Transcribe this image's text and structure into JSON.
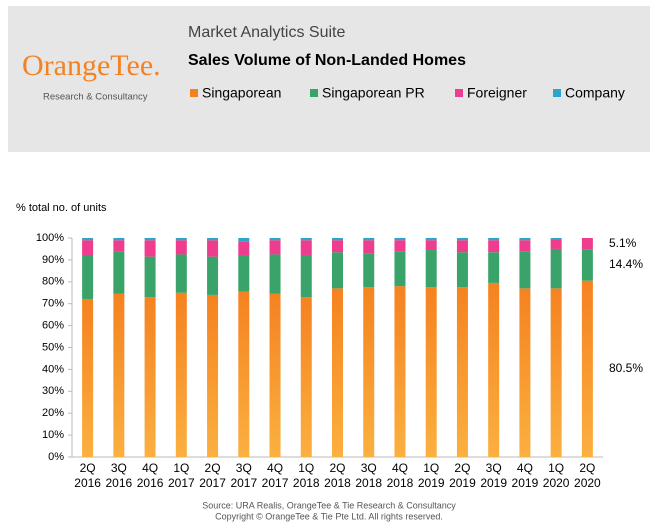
{
  "chart_data": {
    "type": "stacked_bar",
    "brand": "OrangeTee.",
    "brand_subtitle": "Research & Consultancy",
    "suite": "Market Analytics Suite",
    "title": "Sales Volume of Non-Landed Homes",
    "y_axis_label": "% total no. of units",
    "categories": [
      "2Q 2016",
      "3Q 2016",
      "4Q 2016",
      "1Q 2017",
      "2Q 2017",
      "3Q 2017",
      "4Q 2017",
      "1Q 2018",
      "2Q 2018",
      "3Q 2018",
      "4Q 2018",
      "1Q 2019",
      "2Q 2019",
      "3Q 2019",
      "4Q 2019",
      "1Q 2020",
      "2Q 2020"
    ],
    "series": [
      {
        "name": "Singaporean",
        "color": "#f58220",
        "values": [
          72,
          74.5,
          73,
          75,
          74,
          75.5,
          74.5,
          73,
          77,
          77.5,
          78,
          77.5,
          77.5,
          79.5,
          77,
          77,
          80.5
        ],
        "value_labels": [
          null,
          null,
          null,
          null,
          null,
          null,
          null,
          null,
          null,
          null,
          null,
          null,
          null,
          null,
          null,
          null,
          "80.5%"
        ]
      },
      {
        "name": "Singaporean PR",
        "color": "#3aa36a",
        "values": [
          20,
          19.5,
          18.5,
          17.5,
          17.5,
          16.5,
          18,
          19,
          16.5,
          15.5,
          16,
          17,
          16,
          14,
          17,
          18,
          14.4
        ],
        "value_labels": [
          null,
          null,
          null,
          null,
          null,
          null,
          null,
          null,
          null,
          null,
          null,
          null,
          null,
          null,
          null,
          null,
          "14.4%"
        ]
      },
      {
        "name": "Foreigner",
        "color": "#ee3d8f",
        "values": [
          7,
          5,
          7.5,
          6.5,
          7.5,
          6.5,
          6.5,
          7,
          5.5,
          6,
          5,
          4.5,
          5.5,
          5.5,
          5,
          4.5,
          5.1
        ],
        "value_labels": [
          null,
          null,
          null,
          null,
          null,
          null,
          null,
          null,
          null,
          null,
          null,
          null,
          null,
          null,
          null,
          null,
          "5.1%"
        ]
      },
      {
        "name": "Company",
        "color": "#2aa6c8",
        "values": [
          1,
          1,
          1,
          1,
          1,
          1.5,
          1,
          1,
          1,
          1,
          1,
          1,
          1,
          1,
          1,
          0.5,
          0
        ]
      }
    ],
    "ylim": [
      0,
      100
    ],
    "yticks": [
      {
        "value": 0,
        "label": "0%"
      },
      {
        "value": 10,
        "label": "10%"
      },
      {
        "value": 20,
        "label": "20%"
      },
      {
        "value": 30,
        "label": "30%"
      },
      {
        "value": 40,
        "label": "40%"
      },
      {
        "value": 50,
        "label": "50%"
      },
      {
        "value": 60,
        "label": "60%"
      },
      {
        "value": 70,
        "label": "70%"
      },
      {
        "value": 80,
        "label": "80%"
      },
      {
        "value": 90,
        "label": "90%"
      },
      {
        "value": 100,
        "label": "100%"
      }
    ],
    "grid": false,
    "legend": "top",
    "source": "Source: URA Realis, OrangeTee & Tie Research & Consultancy",
    "copyright": "Copyright © OrangeTee & Tie Pte Ltd. All rights reserved."
  }
}
